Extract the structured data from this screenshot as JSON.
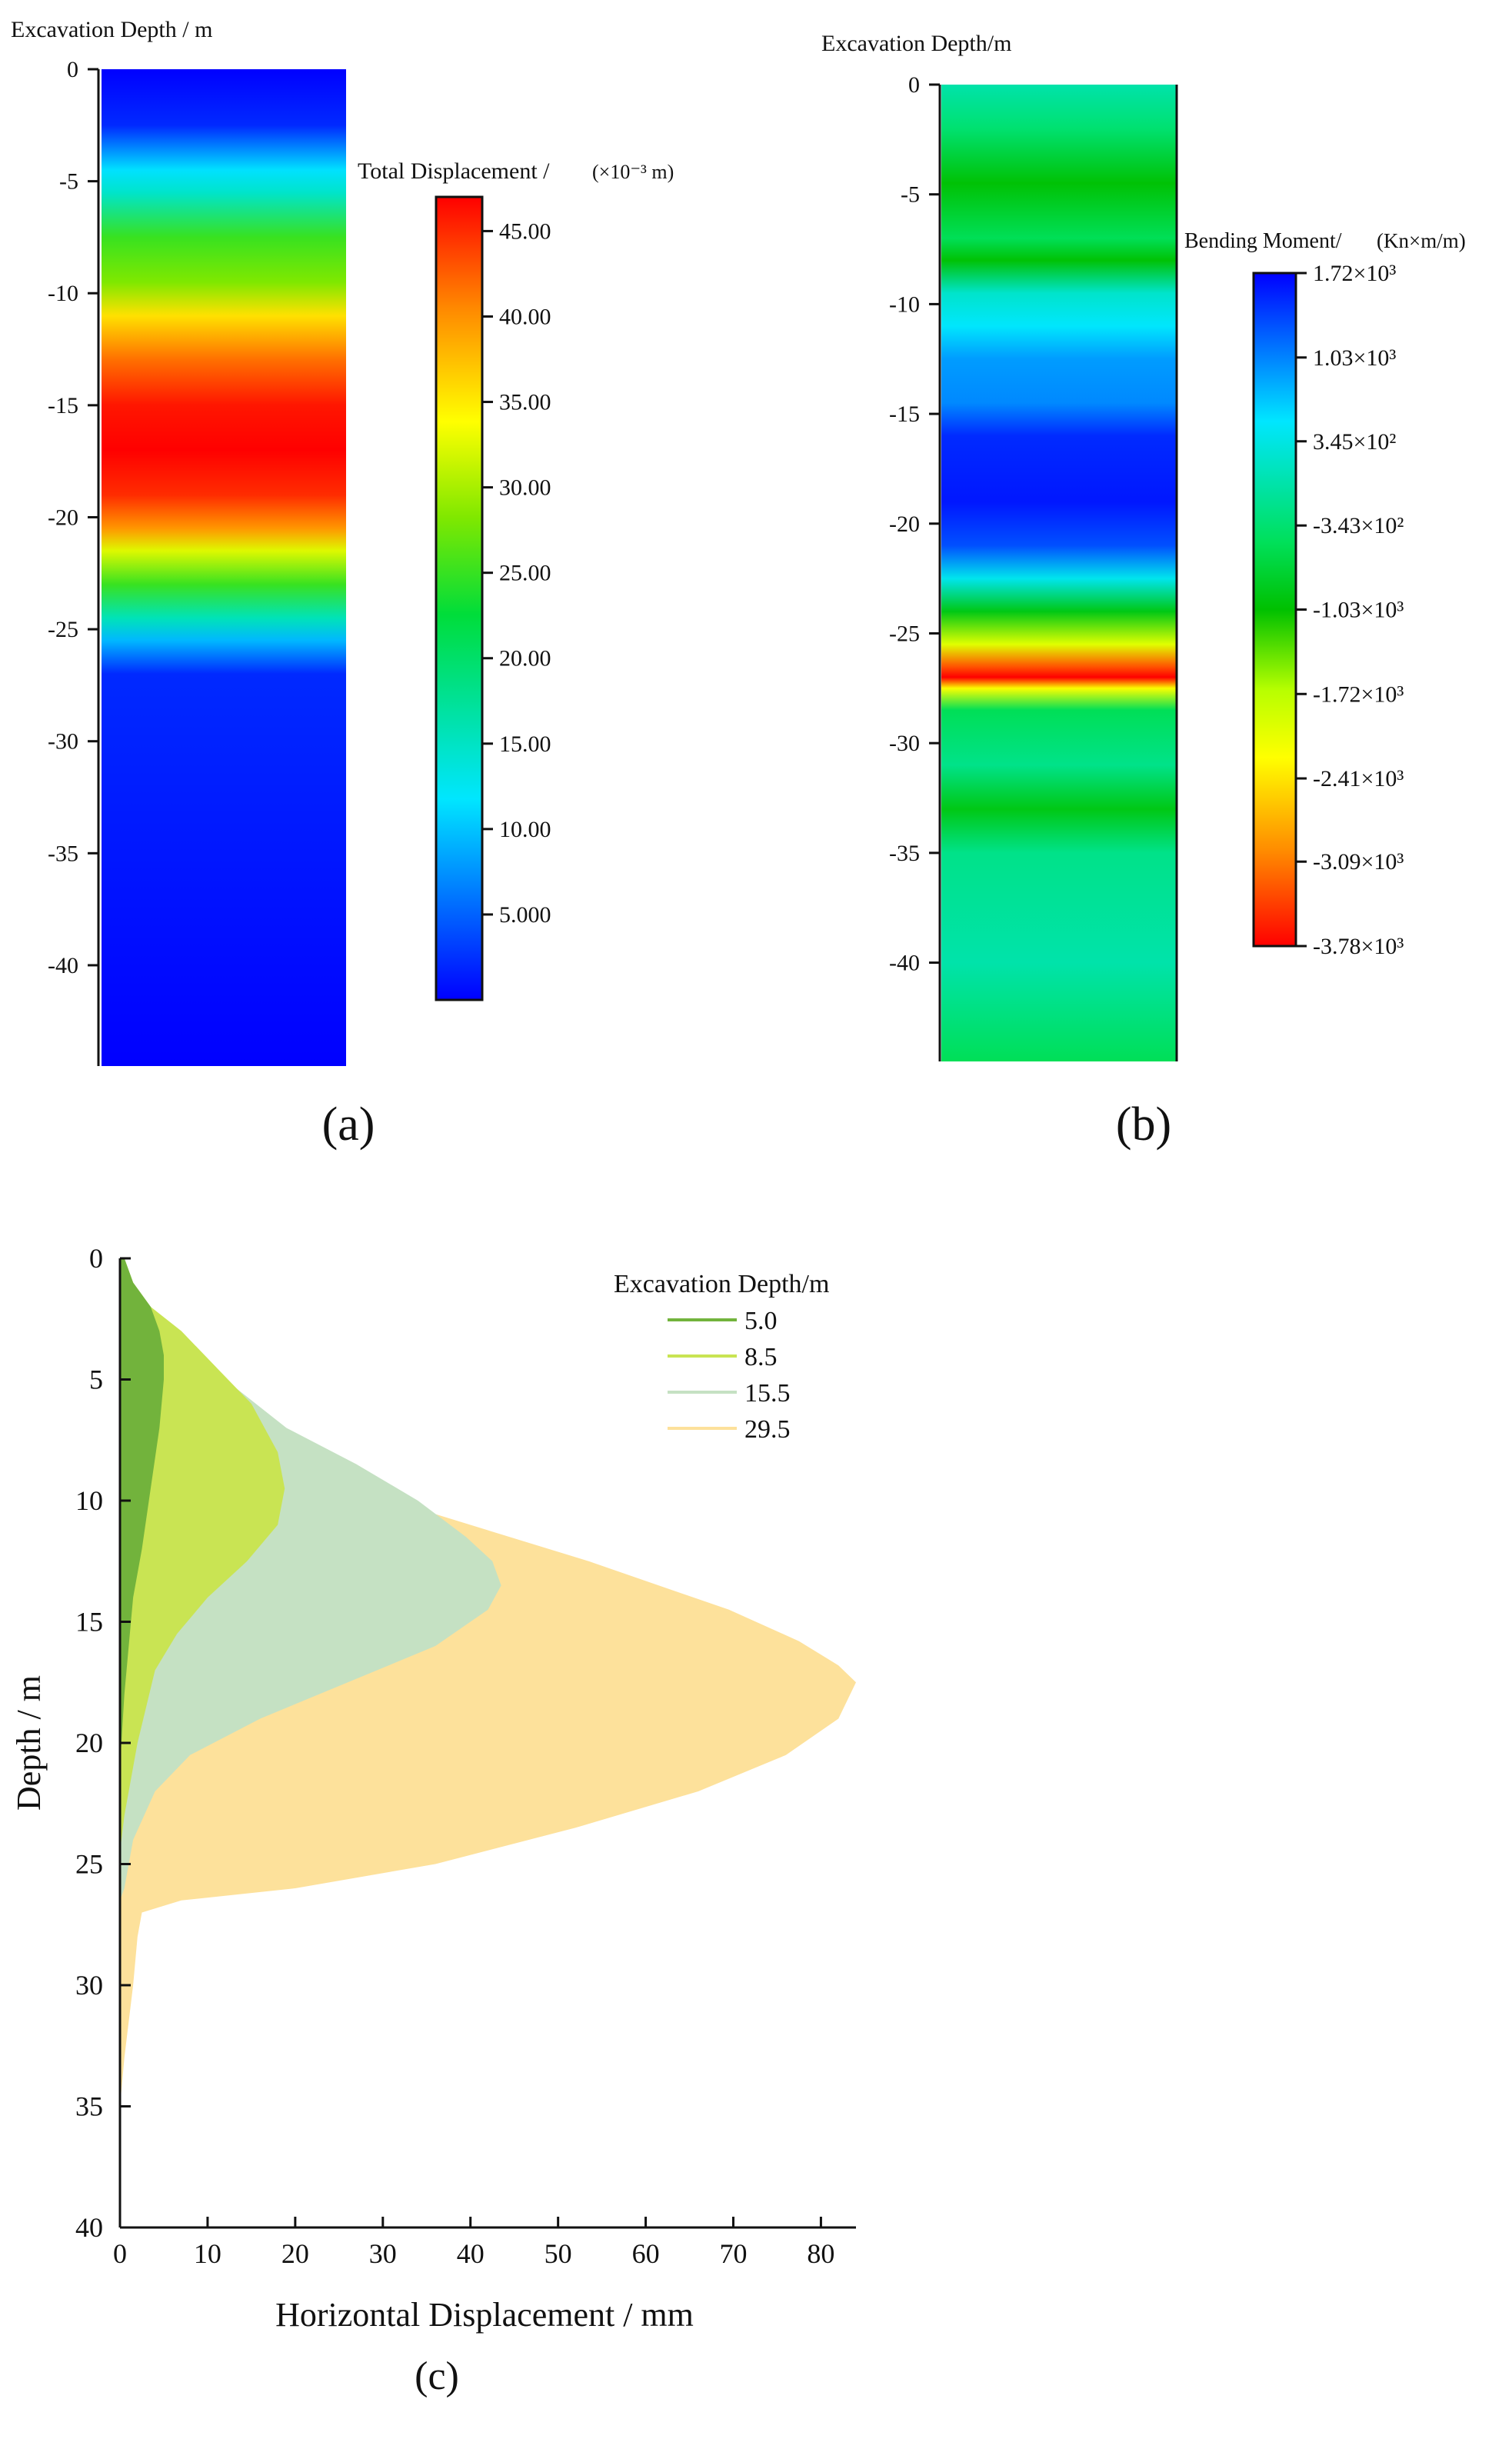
{
  "panel_a": {
    "label": "(a)",
    "axis_title": "Excavation Depth / m",
    "ticks": [
      "0",
      "-5",
      "-10",
      "-15",
      "-20",
      "-25",
      "-30",
      "-35",
      "-40"
    ],
    "colorbar_title": "Total Displacement /",
    "colorbar_unit": "(×10⁻³ m)",
    "colorbar_ticks": [
      "45.00",
      "40.00",
      "35.00",
      "30.00",
      "25.00",
      "20.00",
      "15.00",
      "10.00",
      "5.000"
    ]
  },
  "panel_b": {
    "label": "(b)",
    "axis_title": "Excavation Depth/m",
    "ticks": [
      "0",
      "-5",
      "-10",
      "-15",
      "-20",
      "-25",
      "-30",
      "-35",
      "-40"
    ],
    "colorbar_title": "Bending Moment/",
    "colorbar_unit": "(Kn×m/m)",
    "colorbar_ticks": [
      "1.72×10³",
      "1.03×10³",
      "3.45×10²",
      "-3.43×10²",
      "-1.03×10³",
      "-1.72×10³",
      "-2.41×10³",
      "-3.09×10³",
      "-3.78×10³"
    ]
  },
  "panel_c": {
    "label": "(c)",
    "xlabel": "Horizontal Displacement / mm",
    "ylabel": "Depth / m",
    "legend_title": "Excavation Depth/m",
    "xticks": [
      "0",
      "10",
      "20",
      "30",
      "40",
      "50",
      "60",
      "70",
      "80"
    ],
    "yticks": [
      "0",
      "5",
      "10",
      "15",
      "20",
      "25",
      "30",
      "35",
      "40"
    ]
  },
  "colors": {
    "series_5_0": "#72b33c",
    "series_8_5": "#c9e453",
    "series_15_5": "#c5e1c3",
    "series_29_5": "#fde19b"
  },
  "chart_data": [
    {
      "type": "heatmap",
      "panel": "a",
      "ylabel": "Excavation Depth / m",
      "ylim": [
        0,
        -44.5
      ],
      "colorbar": {
        "title": "Total Displacement /",
        "unit": "(×10⁻³ m)",
        "range": [
          0,
          45
        ],
        "ticks": [
          45,
          40,
          35,
          30,
          25,
          20,
          15,
          10,
          5
        ]
      },
      "depth_profile": [
        {
          "depth": 0,
          "value": 0
        },
        {
          "depth": -2.5,
          "value": 2
        },
        {
          "depth": -4.5,
          "value": 11
        },
        {
          "depth": -5.5,
          "value": 14
        },
        {
          "depth": -7.5,
          "value": 24
        },
        {
          "depth": -9.5,
          "value": 27
        },
        {
          "depth": -11,
          "value": 34
        },
        {
          "depth": -13,
          "value": 40
        },
        {
          "depth": -15,
          "value": 44
        },
        {
          "depth": -17,
          "value": 45
        },
        {
          "depth": -19,
          "value": 43
        },
        {
          "depth": -20.5,
          "value": 38
        },
        {
          "depth": -21.5,
          "value": 31
        },
        {
          "depth": -23,
          "value": 24
        },
        {
          "depth": -24.5,
          "value": 15
        },
        {
          "depth": -25.5,
          "value": 9
        },
        {
          "depth": -27,
          "value": 2
        },
        {
          "depth": -44.5,
          "value": 0
        }
      ]
    },
    {
      "type": "heatmap",
      "panel": "b",
      "ylabel": "Excavation Depth/m",
      "ylim": [
        0,
        -44.5
      ],
      "colorbar": {
        "title": "Bending Moment/",
        "unit": "(Kn×m/m)",
        "range": [
          -3780,
          1720
        ],
        "ticks": [
          1720,
          1030,
          345,
          -343,
          -1030,
          -1720,
          -2410,
          -3090,
          -3780
        ]
      },
      "depth_profile": [
        {
          "depth": 0,
          "value": 0
        },
        {
          "depth": -2,
          "value": -350
        },
        {
          "depth": -4.5,
          "value": -1000
        },
        {
          "depth": -7,
          "value": -500
        },
        {
          "depth": -8,
          "value": -1000
        },
        {
          "depth": -9.5,
          "value": 200
        },
        {
          "depth": -11,
          "value": 500
        },
        {
          "depth": -12.5,
          "value": 900
        },
        {
          "depth": -14.5,
          "value": 1000
        },
        {
          "depth": -16,
          "value": 1500
        },
        {
          "depth": -19,
          "value": 1600
        },
        {
          "depth": -21,
          "value": 1300
        },
        {
          "depth": -22.5,
          "value": 400
        },
        {
          "depth": -24,
          "value": -900
        },
        {
          "depth": -25.5,
          "value": -2000
        },
        {
          "depth": -26.5,
          "value": -3300
        },
        {
          "depth": -27,
          "value": -3780
        },
        {
          "depth": -27.5,
          "value": -2200
        },
        {
          "depth": -28.5,
          "value": -500
        },
        {
          "depth": -31,
          "value": -200
        },
        {
          "depth": -33,
          "value": -900
        },
        {
          "depth": -35,
          "value": -200
        },
        {
          "depth": -40,
          "value": 0
        },
        {
          "depth": -44.5,
          "value": -500
        }
      ]
    },
    {
      "type": "area",
      "panel": "c",
      "xlabel": "Horizontal Displacement / mm",
      "ylabel": "Depth / m",
      "xlim": [
        0,
        84
      ],
      "ylim": [
        0,
        40
      ],
      "legend_title": "Excavation Depth/m",
      "legend_placement": "top-right",
      "series": [
        {
          "name": "29.5",
          "color": "#fde19b",
          "points": [
            [
              0.5,
              0
            ],
            [
              1.5,
              1
            ],
            [
              3.5,
              2
            ],
            [
              7.2,
              3.5
            ],
            [
              12.5,
              5.5
            ],
            [
              21.5,
              8
            ],
            [
              35.5,
              10.5
            ],
            [
              53.5,
              12.5
            ],
            [
              69.5,
              14.5
            ],
            [
              77.5,
              15.8
            ],
            [
              82,
              16.8
            ],
            [
              84,
              17.5
            ],
            [
              82,
              19
            ],
            [
              76,
              20.5
            ],
            [
              66,
              22
            ],
            [
              52,
              23.5
            ],
            [
              36,
              25
            ],
            [
              20,
              26
            ],
            [
              7,
              26.5
            ],
            [
              2.5,
              27
            ],
            [
              2,
              28
            ],
            [
              1.5,
              30
            ],
            [
              0.5,
              33
            ],
            [
              0,
              35
            ]
          ]
        },
        {
          "name": "15.5",
          "color": "#c5e1c3",
          "points": [
            [
              0.5,
              0
            ],
            [
              1.5,
              1
            ],
            [
              3.5,
              2
            ],
            [
              7,
              3.5
            ],
            [
              12,
              5
            ],
            [
              19,
              7
            ],
            [
              27,
              8.5
            ],
            [
              34,
              10
            ],
            [
              39.5,
              11.5
            ],
            [
              42.5,
              12.5
            ],
            [
              43.5,
              13.5
            ],
            [
              42,
              14.5
            ],
            [
              36,
              16
            ],
            [
              26,
              17.5
            ],
            [
              16,
              19
            ],
            [
              8,
              20.5
            ],
            [
              4,
              22
            ],
            [
              1.5,
              24
            ],
            [
              0.5,
              26
            ],
            [
              0,
              26.5
            ]
          ]
        },
        {
          "name": "8.5",
          "color": "#c9e453",
          "points": [
            [
              0.5,
              0
            ],
            [
              1.5,
              1
            ],
            [
              3.5,
              2
            ],
            [
              7,
              3
            ],
            [
              11,
              4.5
            ],
            [
              15,
              6
            ],
            [
              18,
              8
            ],
            [
              18.8,
              9.5
            ],
            [
              18,
              11
            ],
            [
              14.5,
              12.5
            ],
            [
              10,
              14
            ],
            [
              6.5,
              15.5
            ],
            [
              4,
              17
            ],
            [
              2,
              20
            ],
            [
              0.5,
              23
            ],
            [
              0,
              24.5
            ]
          ]
        },
        {
          "name": "5.0",
          "color": "#72b33c",
          "points": [
            [
              0.5,
              0
            ],
            [
              1.5,
              1
            ],
            [
              3.5,
              2
            ],
            [
              4.5,
              3
            ],
            [
              5,
              4
            ],
            [
              5,
              5
            ],
            [
              4.5,
              7
            ],
            [
              3.5,
              9.5
            ],
            [
              2.5,
              12
            ],
            [
              1.5,
              14
            ],
            [
              0.5,
              18
            ],
            [
              0,
              21
            ]
          ]
        }
      ]
    }
  ]
}
